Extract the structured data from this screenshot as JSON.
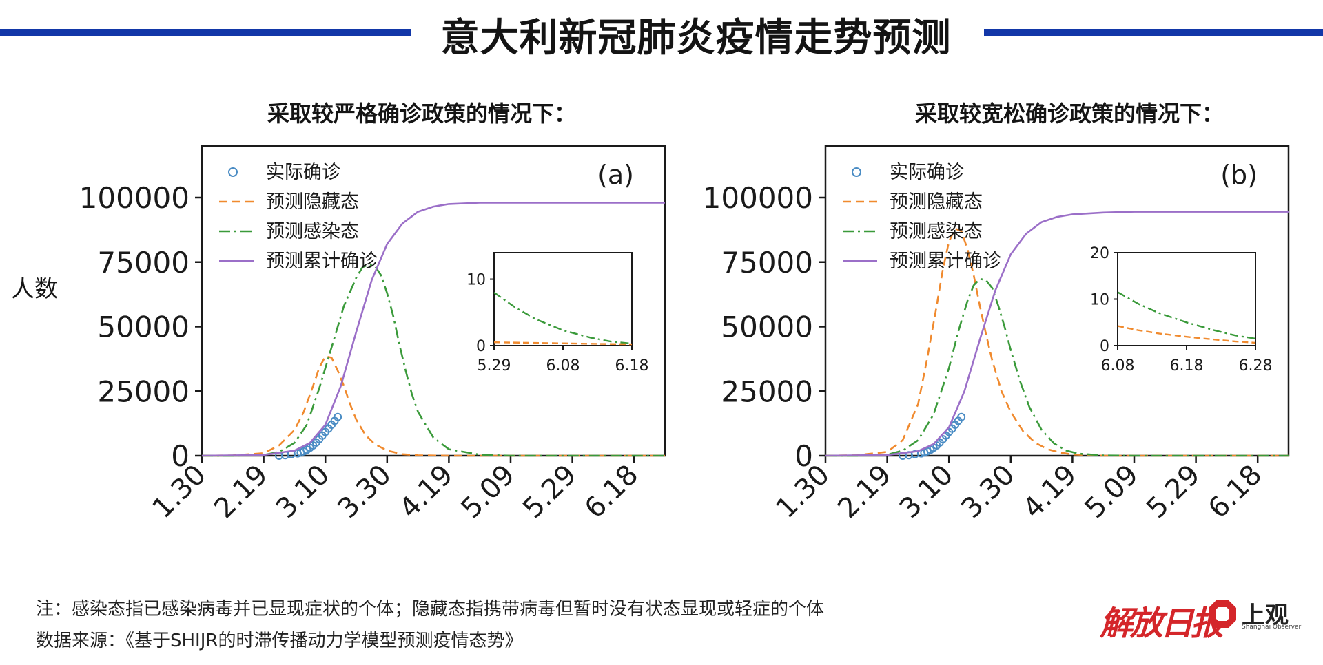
{
  "page": {
    "title": "意大利新冠肺炎疫情走势预测",
    "ylabel": "人数",
    "note": "注：感染态指已感染病毒并已显现症状的个体；隐藏态指携带病毒但暂时没有状态显现或轻症的个体",
    "source": "数据来源：《基于SHIJR的时滞传播动力学模型预测疫情态势》",
    "logo_jiefang": "解放日报",
    "logo_shangguan": "上观",
    "logo_shangguan_sub": "Shanghai Observer",
    "colors": {
      "title_rule": "#1237a8",
      "observed": "#4a8cc4",
      "hidden": "#f08a2e",
      "infected": "#3a9a3a",
      "cumulative": "#9b6fc8",
      "logo_red": "#d4262a"
    }
  },
  "chart_data": [
    {
      "type": "line",
      "subtitle": "采取较严格确诊政策的情况下：",
      "panel_label": "(a)",
      "x_ticks": [
        "1.30",
        "2.19",
        "3.10",
        "3.30",
        "4.19",
        "5.09",
        "5.29",
        "6.18"
      ],
      "x_tick_days": [
        0,
        20,
        40,
        60,
        80,
        100,
        120,
        140
      ],
      "xlim_days": [
        0,
        150
      ],
      "y_ticks": [
        "0",
        "25000",
        "50000",
        "75000",
        "100000"
      ],
      "ylim": [
        0,
        120000
      ],
      "legend": [
        "实际确诊",
        "预测隐藏态",
        "预测感染态",
        "预测累计确诊"
      ],
      "series": [
        {
          "name": "实际确诊",
          "style": "circles",
          "x_days": [
            25,
            27,
            29,
            31,
            32,
            33,
            34,
            35,
            36,
            37,
            38,
            39,
            40,
            41,
            42,
            43,
            44
          ],
          "y": [
            0,
            200,
            600,
            900,
            1200,
            1700,
            2300,
            3100,
            4000,
            5100,
            6400,
            7800,
            9200,
            10500,
            12000,
            13500,
            15000
          ]
        },
        {
          "name": "预测隐藏态",
          "style": "dashed",
          "x_days": [
            0,
            10,
            20,
            25,
            30,
            33,
            36,
            38,
            40,
            42,
            44,
            46,
            48,
            50,
            53,
            56,
            60,
            65,
            70,
            80,
            100,
            150
          ],
          "y": [
            0,
            100,
            1000,
            4000,
            10000,
            17000,
            27000,
            34000,
            38500,
            38000,
            33000,
            27000,
            20000,
            14000,
            8000,
            4500,
            2000,
            600,
            150,
            0,
            0,
            0
          ]
        },
        {
          "name": "预测感染态",
          "style": "dashdot",
          "x_days": [
            0,
            10,
            20,
            25,
            30,
            34,
            38,
            42,
            46,
            50,
            52,
            54,
            56,
            58,
            60,
            62,
            64,
            66,
            68,
            70,
            75,
            80,
            90,
            100,
            150
          ],
          "y": [
            0,
            0,
            300,
            1500,
            5000,
            12000,
            26000,
            42000,
            58000,
            69000,
            73000,
            74000,
            73500,
            70000,
            63000,
            54000,
            43000,
            33000,
            24000,
            17000,
            7000,
            2500,
            400,
            0,
            0
          ]
        },
        {
          "name": "预测累计确诊",
          "style": "solid",
          "x_days": [
            0,
            20,
            30,
            35,
            40,
            45,
            50,
            55,
            60,
            65,
            70,
            75,
            80,
            90,
            100,
            150
          ],
          "y": [
            0,
            300,
            2000,
            5000,
            12000,
            27000,
            48000,
            68000,
            82000,
            90000,
            94500,
            96500,
            97500,
            98000,
            98000,
            98000
          ]
        }
      ],
      "inset": {
        "x_ticks": [
          "5.29",
          "6.08",
          "6.18"
        ],
        "y_ticks": [
          "0",
          "10"
        ],
        "ylim": [
          0,
          14
        ],
        "series": [
          {
            "name": "预测感染态",
            "style": "dashdot",
            "x_frac": [
              0,
              0.15,
              0.3,
              0.5,
              0.7,
              0.85,
              1
            ],
            "y": [
              8,
              5.8,
              4,
              2.3,
              1.2,
              0.6,
              0.3
            ]
          },
          {
            "name": "预测隐藏态",
            "style": "dashed",
            "x_frac": [
              0,
              0.3,
              0.6,
              1
            ],
            "y": [
              0.5,
              0.4,
              0.3,
              0.2
            ]
          }
        ]
      }
    },
    {
      "type": "line",
      "subtitle": "采取较宽松确诊政策的情况下：",
      "panel_label": "(b)",
      "x_ticks": [
        "1.30",
        "2.19",
        "3.10",
        "3.30",
        "4.19",
        "5.09",
        "5.29",
        "6.18"
      ],
      "x_tick_days": [
        0,
        20,
        40,
        60,
        80,
        100,
        120,
        140
      ],
      "xlim_days": [
        0,
        150
      ],
      "y_ticks": [
        "0",
        "25000",
        "50000",
        "75000",
        "100000"
      ],
      "ylim": [
        0,
        120000
      ],
      "legend": [
        "实际确诊",
        "预测隐藏态",
        "预测感染态",
        "预测累计确诊"
      ],
      "series": [
        {
          "name": "实际确诊",
          "style": "circles",
          "x_days": [
            25,
            27,
            29,
            31,
            32,
            33,
            34,
            35,
            36,
            37,
            38,
            39,
            40,
            41,
            42,
            43,
            44
          ],
          "y": [
            0,
            200,
            600,
            900,
            1200,
            1700,
            2300,
            3100,
            4000,
            5100,
            6400,
            7800,
            9200,
            10500,
            12000,
            13500,
            15000
          ]
        },
        {
          "name": "预测隐藏态",
          "style": "dashed",
          "x_days": [
            0,
            10,
            20,
            25,
            30,
            33,
            36,
            38,
            40,
            42,
            44,
            46,
            48,
            50,
            52,
            54,
            57,
            60,
            64,
            68,
            72,
            76,
            80,
            90,
            100,
            150
          ],
          "y": [
            0,
            200,
            1500,
            6000,
            20000,
            38000,
            58000,
            72000,
            83000,
            88000,
            87000,
            80000,
            70000,
            58000,
            47000,
            37000,
            25000,
            17000,
            9500,
            5000,
            2500,
            1200,
            500,
            0,
            0,
            0
          ]
        },
        {
          "name": "预测感染态",
          "style": "dashdot",
          "x_days": [
            0,
            10,
            20,
            25,
            30,
            35,
            40,
            43,
            46,
            48,
            50,
            52,
            54,
            56,
            58,
            60,
            63,
            66,
            70,
            74,
            78,
            82,
            90,
            100,
            150
          ],
          "y": [
            0,
            0,
            400,
            2000,
            6000,
            16000,
            34000,
            48000,
            60000,
            66000,
            68500,
            68000,
            65000,
            58000,
            50000,
            41000,
            29000,
            19000,
            10000,
            4800,
            2000,
            800,
            100,
            0,
            0
          ]
        },
        {
          "name": "预测累计确诊",
          "style": "solid",
          "x_days": [
            0,
            20,
            30,
            35,
            40,
            45,
            50,
            55,
            60,
            65,
            70,
            75,
            80,
            90,
            100,
            150
          ],
          "y": [
            0,
            300,
            1800,
            4500,
            11000,
            25000,
            45000,
            64000,
            78000,
            86000,
            90500,
            92500,
            93500,
            94200,
            94500,
            94500
          ]
        }
      ],
      "inset": {
        "x_ticks": [
          "6.08",
          "6.18",
          "6.28"
        ],
        "y_ticks": [
          "0",
          "10",
          "20"
        ],
        "ylim": [
          0,
          20
        ],
        "series": [
          {
            "name": "预测感染态",
            "style": "dashdot",
            "x_frac": [
              0,
              0.15,
              0.3,
              0.5,
              0.7,
              0.85,
              1
            ],
            "y": [
              11.5,
              9,
              7,
              5,
              3.3,
              2.2,
              1.5
            ]
          },
          {
            "name": "预测隐藏态",
            "style": "dashed",
            "x_frac": [
              0,
              0.15,
              0.3,
              0.5,
              0.7,
              0.85,
              1
            ],
            "y": [
              4.2,
              3.3,
              2.6,
              1.9,
              1.3,
              0.9,
              0.6
            ]
          }
        ]
      }
    }
  ]
}
